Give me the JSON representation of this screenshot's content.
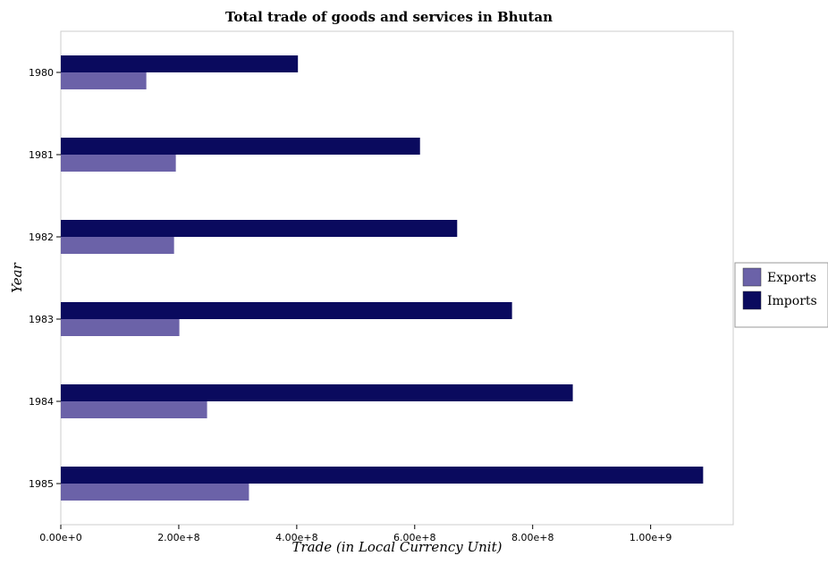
{
  "chart_data": {
    "type": "bar",
    "orientation": "horizontal",
    "title": "Total trade of goods and services in Bhutan",
    "xlabel": "Trade (in Local Currency Unit)",
    "ylabel": "Year",
    "categories": [
      "1980",
      "1981",
      "1982",
      "1983",
      "1984",
      "1985"
    ],
    "series": [
      {
        "name": "Exports",
        "color": "#6b62a8",
        "values": [
          145000000,
          195000000,
          192000000,
          201000000,
          248000000,
          319000000
        ]
      },
      {
        "name": "Imports",
        "color": "#0a0a5e",
        "values": [
          402000000,
          609000000,
          672000000,
          765000000,
          868000000,
          1089000000
        ]
      }
    ],
    "xticks": [
      "0.00e+0",
      "2.00e+8",
      "4.00e+8",
      "6.00e+8",
      "8.00e+8",
      "1.00e+9"
    ],
    "xlim": [
      0,
      1140000000
    ],
    "grid": false,
    "legend_position": "right"
  }
}
